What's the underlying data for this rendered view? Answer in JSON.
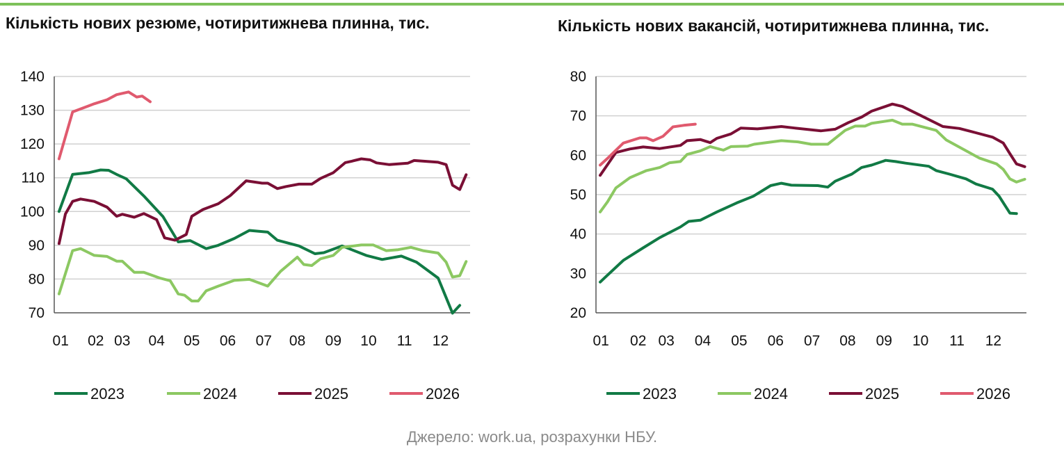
{
  "source": "Джерело: work.ua, розрахунки НБУ.",
  "chart_data": [
    {
      "type": "line",
      "title": "Кількість нових резюме, чотиритижнева плинна, тис.",
      "ylim": [
        70,
        140
      ],
      "yticks": [
        70,
        80,
        90,
        100,
        110,
        120,
        130,
        140
      ],
      "xlim": [
        1,
        53
      ],
      "xticks": [
        {
          "label": "01",
          "x": 1.8
        },
        {
          "label": "02",
          "x": 6.2
        },
        {
          "label": "03",
          "x": 9.5
        },
        {
          "label": "04",
          "x": 13.8
        },
        {
          "label": "05",
          "x": 18.2
        },
        {
          "label": "06",
          "x": 22.7
        },
        {
          "label": "07",
          "x": 27.2
        },
        {
          "label": "08",
          "x": 31.4
        },
        {
          "label": "09",
          "x": 35.9
        },
        {
          "label": "10",
          "x": 40.3
        },
        {
          "label": "11",
          "x": 44.8
        },
        {
          "label": "12",
          "x": 49.3
        }
      ],
      "grid": true,
      "legend": "bottom",
      "series": [
        {
          "name": "2023",
          "color": "#117a45",
          "points": [
            [
              1.6,
              100
            ],
            [
              3.3,
              111
            ],
            [
              5.3,
              111.5
            ],
            [
              6.8,
              112.3
            ],
            [
              7.8,
              112.2
            ],
            [
              8.8,
              111
            ],
            [
              10,
              109.7
            ],
            [
              12.2,
              104.6
            ],
            [
              14.6,
              98.5
            ],
            [
              16.5,
              91
            ],
            [
              18,
              91.4
            ],
            [
              20,
              89
            ],
            [
              21.5,
              90
            ],
            [
              23.5,
              92
            ],
            [
              25.4,
              94.4
            ],
            [
              27.7,
              93.9
            ],
            [
              28.9,
              91.5
            ],
            [
              31.6,
              89.8
            ],
            [
              33.6,
              87.5
            ],
            [
              34.7,
              87.8
            ],
            [
              37,
              89.8
            ],
            [
              40,
              87
            ],
            [
              42,
              85.8
            ],
            [
              44.4,
              86.8
            ],
            [
              46.3,
              85
            ],
            [
              49,
              80.3
            ],
            [
              50.8,
              69.9
            ],
            [
              51.7,
              72.2
            ]
          ]
        },
        {
          "name": "2024",
          "color": "#8cc862",
          "points": [
            [
              1.6,
              75.6
            ],
            [
              3.3,
              88.4
            ],
            [
              4.3,
              89
            ],
            [
              6,
              87
            ],
            [
              7.6,
              86.7
            ],
            [
              8.8,
              85.3
            ],
            [
              9.5,
              85.3
            ],
            [
              11,
              82
            ],
            [
              12.2,
              82
            ],
            [
              14.2,
              80.3
            ],
            [
              15.5,
              79.5
            ],
            [
              16.5,
              75.6
            ],
            [
              17.3,
              75.2
            ],
            [
              18.2,
              73.5
            ],
            [
              19,
              73.5
            ],
            [
              20,
              76.5
            ],
            [
              21.5,
              77.9
            ],
            [
              23.5,
              79.6
            ],
            [
              25.4,
              79.9
            ],
            [
              27.7,
              77.9
            ],
            [
              29.3,
              82.3
            ],
            [
              31.4,
              86.5
            ],
            [
              32.2,
              84.3
            ],
            [
              33.2,
              84
            ],
            [
              34.3,
              86
            ],
            [
              35.9,
              87
            ],
            [
              37,
              89.4
            ],
            [
              39.4,
              90.1
            ],
            [
              40.9,
              90.1
            ],
            [
              42.5,
              88.4
            ],
            [
              44,
              88.7
            ],
            [
              45.6,
              89.4
            ],
            [
              47.1,
              88.4
            ],
            [
              49,
              87.7
            ],
            [
              50,
              85
            ],
            [
              50.8,
              80.6
            ],
            [
              51.7,
              81
            ],
            [
              52.5,
              85.2
            ]
          ]
        },
        {
          "name": "2025",
          "color": "#7a0f35",
          "points": [
            [
              1.6,
              90.5
            ],
            [
              2.4,
              99.3
            ],
            [
              3.3,
              103
            ],
            [
              4.3,
              103.7
            ],
            [
              6,
              103
            ],
            [
              7.6,
              101.3
            ],
            [
              8.8,
              98.6
            ],
            [
              9.5,
              99.2
            ],
            [
              11,
              98.3
            ],
            [
              12.2,
              99.4
            ],
            [
              13.8,
              97.6
            ],
            [
              14.8,
              92.2
            ],
            [
              16.1,
              91.5
            ],
            [
              17.5,
              93.2
            ],
            [
              18.2,
              98.6
            ],
            [
              19.6,
              100.6
            ],
            [
              21.5,
              102.3
            ],
            [
              23,
              104.7
            ],
            [
              25,
              109.1
            ],
            [
              27,
              108.4
            ],
            [
              27.7,
              108.4
            ],
            [
              28.9,
              106.8
            ],
            [
              30,
              107.4
            ],
            [
              31.6,
              108.1
            ],
            [
              33.2,
              108.1
            ],
            [
              34.3,
              109.8
            ],
            [
              35.9,
              111.5
            ],
            [
              37.4,
              114.5
            ],
            [
              38.2,
              114.9
            ],
            [
              39.4,
              115.6
            ],
            [
              40.5,
              115.3
            ],
            [
              41.3,
              114.4
            ],
            [
              42.9,
              113.9
            ],
            [
              45.2,
              114.3
            ],
            [
              46,
              115.1
            ],
            [
              49,
              114.6
            ],
            [
              50,
              113.9
            ],
            [
              50.8,
              107.8
            ],
            [
              51.7,
              106.5
            ],
            [
              52.5,
              110.9
            ]
          ]
        },
        {
          "name": "2026",
          "color": "#e05a6e",
          "points": [
            [
              1.6,
              115.6
            ],
            [
              3.3,
              129.5
            ],
            [
              6,
              131.9
            ],
            [
              7.6,
              133.1
            ],
            [
              8.8,
              134.6
            ],
            [
              10.3,
              135.4
            ],
            [
              11.3,
              133.9
            ],
            [
              12,
              134.2
            ],
            [
              13,
              132.5
            ]
          ]
        }
      ]
    },
    {
      "type": "line",
      "title": "Кількість нових вакансій, чотиритижнева плинна, тис.",
      "ylim": [
        20,
        80
      ],
      "yticks": [
        20,
        30,
        40,
        50,
        60,
        70,
        80
      ],
      "xlim": [
        1,
        53
      ],
      "xticks": [
        {
          "label": "01",
          "x": 1.6
        },
        {
          "label": "02",
          "x": 6.1
        },
        {
          "label": "03",
          "x": 9.5
        },
        {
          "label": "04",
          "x": 13.9
        },
        {
          "label": "05",
          "x": 18.3
        },
        {
          "label": "06",
          "x": 22.7
        },
        {
          "label": "07",
          "x": 27.1
        },
        {
          "label": "08",
          "x": 31.4
        },
        {
          "label": "09",
          "x": 35.8
        },
        {
          "label": "10",
          "x": 40.2
        },
        {
          "label": "11",
          "x": 44.6
        },
        {
          "label": "12",
          "x": 49
        }
      ],
      "grid": true,
      "legend": "bottom",
      "series": [
        {
          "name": "2023",
          "color": "#117a45",
          "points": [
            [
              1.5,
              27.8
            ],
            [
              2.2,
              29.2
            ],
            [
              4.3,
              33.3
            ],
            [
              6.7,
              36.5
            ],
            [
              8.7,
              39.1
            ],
            [
              11.2,
              41.8
            ],
            [
              12.2,
              43.2
            ],
            [
              13.6,
              43.5
            ],
            [
              15.6,
              45.6
            ],
            [
              18,
              47.9
            ],
            [
              20,
              49.6
            ],
            [
              22.1,
              52.3
            ],
            [
              23.4,
              52.9
            ],
            [
              24.6,
              52.4
            ],
            [
              27.8,
              52.3
            ],
            [
              29,
              51.9
            ],
            [
              29.9,
              53.4
            ],
            [
              31.9,
              55.2
            ],
            [
              33.1,
              56.9
            ],
            [
              34.3,
              57.5
            ],
            [
              36,
              58.7
            ],
            [
              37.2,
              58.4
            ],
            [
              38.4,
              58
            ],
            [
              41.2,
              57.2
            ],
            [
              42.1,
              56.1
            ],
            [
              43.7,
              55.2
            ],
            [
              45.7,
              54
            ],
            [
              46.9,
              52.7
            ],
            [
              48.9,
              51.4
            ],
            [
              49.7,
              49.6
            ],
            [
              51,
              45.3
            ],
            [
              51.8,
              45.2
            ]
          ]
        },
        {
          "name": "2024",
          "color": "#8cc862",
          "points": [
            [
              1.5,
              45.6
            ],
            [
              2.4,
              48.2
            ],
            [
              3.4,
              51.7
            ],
            [
              5.1,
              54.3
            ],
            [
              7.1,
              56.1
            ],
            [
              8.7,
              56.9
            ],
            [
              9.9,
              58.1
            ],
            [
              11.2,
              58.4
            ],
            [
              12,
              60.2
            ],
            [
              13.6,
              61.1
            ],
            [
              14.8,
              62.2
            ],
            [
              16.4,
              61.3
            ],
            [
              17.3,
              62.2
            ],
            [
              19.3,
              62.3
            ],
            [
              20.1,
              62.8
            ],
            [
              23.4,
              63.7
            ],
            [
              25.4,
              63.4
            ],
            [
              27,
              62.8
            ],
            [
              29,
              62.8
            ],
            [
              31.1,
              66.3
            ],
            [
              32.3,
              67.4
            ],
            [
              33.5,
              67.4
            ],
            [
              34.3,
              68.1
            ],
            [
              36.8,
              68.9
            ],
            [
              38,
              67.9
            ],
            [
              39.2,
              67.9
            ],
            [
              42.1,
              66.3
            ],
            [
              43.3,
              63.9
            ],
            [
              45.3,
              61.6
            ],
            [
              47.3,
              59.3
            ],
            [
              49.4,
              57.8
            ],
            [
              50.2,
              56.4
            ],
            [
              51,
              54
            ],
            [
              51.8,
              53.2
            ],
            [
              52.8,
              53.9
            ]
          ]
        },
        {
          "name": "2025",
          "color": "#7a0f35",
          "points": [
            [
              1.5,
              54.9
            ],
            [
              3.4,
              60.7
            ],
            [
              5.1,
              61.6
            ],
            [
              6.7,
              62.1
            ],
            [
              8.7,
              61.7
            ],
            [
              11.2,
              62.5
            ],
            [
              12,
              63.7
            ],
            [
              13.6,
              64
            ],
            [
              14.8,
              63.2
            ],
            [
              15.6,
              64.3
            ],
            [
              17.3,
              65.4
            ],
            [
              18.5,
              66.9
            ],
            [
              20.5,
              66.7
            ],
            [
              23.4,
              67.3
            ],
            [
              25,
              66.9
            ],
            [
              28.2,
              66.2
            ],
            [
              29.9,
              66.6
            ],
            [
              31.5,
              68.3
            ],
            [
              33.1,
              69.7
            ],
            [
              34.3,
              71.2
            ],
            [
              36.8,
              73
            ],
            [
              38,
              72.4
            ],
            [
              40.4,
              69.9
            ],
            [
              42.9,
              67.3
            ],
            [
              44.9,
              66.8
            ],
            [
              46.9,
              65.7
            ],
            [
              48.9,
              64.6
            ],
            [
              50.2,
              63.1
            ],
            [
              51,
              60.4
            ],
            [
              51.8,
              57.8
            ],
            [
              52.8,
              57.1
            ]
          ]
        },
        {
          "name": "2026",
          "color": "#e05a6e",
          "points": [
            [
              1.5,
              57.5
            ],
            [
              2.6,
              59.6
            ],
            [
              4.3,
              63.1
            ],
            [
              6.3,
              64.4
            ],
            [
              7.1,
              64.4
            ],
            [
              7.9,
              63.7
            ],
            [
              9.1,
              64.8
            ],
            [
              10.3,
              67.2
            ],
            [
              11.6,
              67.6
            ],
            [
              13,
              67.9
            ]
          ]
        }
      ]
    }
  ]
}
